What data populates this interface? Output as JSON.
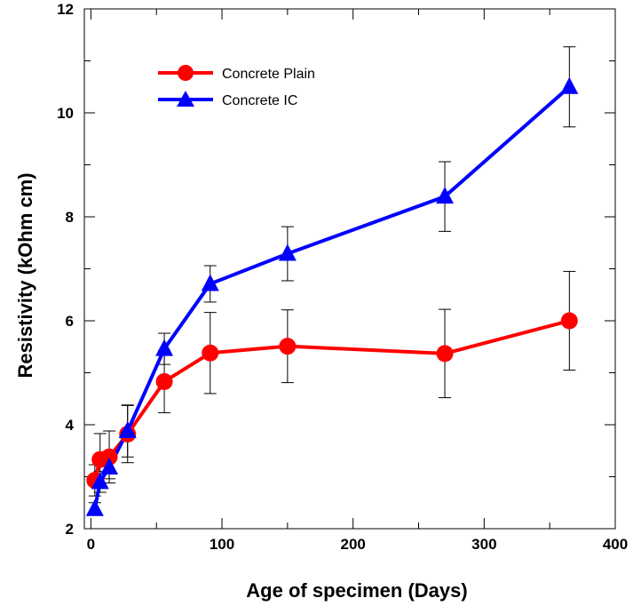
{
  "chart_data": {
    "type": "line",
    "xlabel": "Age of specimen (Days)",
    "ylabel": "Resistivity (kOhm cm)",
    "xlim": [
      -5,
      400
    ],
    "ylim": [
      2,
      12
    ],
    "xticks": [
      0,
      100,
      200,
      300,
      400
    ],
    "yticks": [
      2,
      4,
      6,
      8,
      10,
      12
    ],
    "legend_position": "top-left",
    "grid": false,
    "series": [
      {
        "name": "Concrete Plain",
        "color": "#ff0000",
        "marker": "circle",
        "x": [
          3,
          7,
          14,
          28,
          56,
          91,
          150,
          270,
          365
        ],
        "y": [
          2.93,
          3.33,
          3.38,
          3.82,
          4.83,
          5.38,
          5.51,
          5.37,
          6.0
        ],
        "err": [
          0.3,
          0.5,
          0.5,
          0.55,
          0.6,
          0.78,
          0.7,
          0.85,
          0.95
        ]
      },
      {
        "name": "Concrete IC",
        "color": "#0000ff",
        "marker": "triangle",
        "x": [
          3,
          7,
          14,
          28,
          56,
          91,
          150,
          270,
          365
        ],
        "y": [
          2.38,
          2.9,
          3.18,
          3.88,
          5.46,
          6.71,
          7.29,
          8.39,
          10.5
        ],
        "err": [
          0.12,
          0.2,
          0.22,
          0.5,
          0.3,
          0.35,
          0.52,
          0.67,
          0.77
        ]
      }
    ]
  }
}
